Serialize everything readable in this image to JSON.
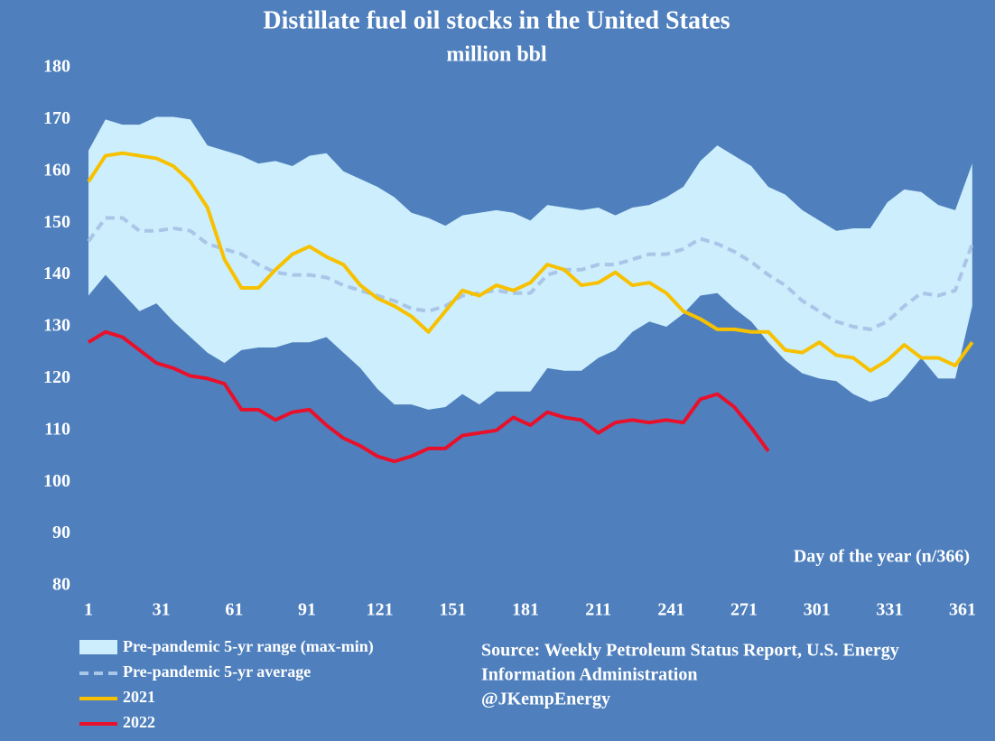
{
  "chart_data": {
    "type": "line",
    "title": "Distillate fuel oil stocks in the United States",
    "subtitle": "million bbl",
    "x_label": "Day of the year (n/366)",
    "background": "#4f80bd",
    "grid": false,
    "xlim": [
      1,
      366
    ],
    "xticks": [
      1,
      31,
      61,
      91,
      121,
      151,
      181,
      211,
      241,
      271,
      301,
      331,
      361
    ],
    "ylim": [
      80,
      180
    ],
    "yticks": [
      80,
      90,
      100,
      110,
      120,
      130,
      140,
      150,
      160,
      170,
      180
    ],
    "x": [
      1,
      8,
      15,
      22,
      29,
      36,
      43,
      50,
      57,
      64,
      71,
      78,
      85,
      92,
      99,
      106,
      113,
      120,
      127,
      134,
      141,
      148,
      155,
      162,
      169,
      176,
      183,
      190,
      197,
      204,
      211,
      218,
      225,
      232,
      239,
      246,
      253,
      260,
      267,
      274,
      281,
      288,
      295,
      302,
      309,
      316,
      323,
      330,
      337,
      344,
      351,
      358,
      365
    ],
    "band": {
      "name": "Pre-pandemic 5-yr range (max-min)",
      "color": "#cdeefc",
      "max": [
        164,
        170,
        169,
        169,
        170.5,
        170.5,
        170,
        165,
        164,
        163,
        161.5,
        162,
        161,
        163,
        163.5,
        160,
        158.5,
        157,
        155,
        152,
        151,
        149.5,
        151.5,
        152,
        152.5,
        152,
        150.5,
        153.5,
        153,
        152.5,
        153,
        151.5,
        153,
        153.5,
        155,
        157,
        162,
        165,
        163,
        161,
        157,
        155.5,
        152.5,
        150.5,
        148.5,
        149,
        149,
        154,
        156.5,
        156,
        153.5,
        152.5,
        161.5
      ],
      "min": [
        136,
        140,
        136.5,
        133,
        134.5,
        131,
        128,
        125,
        123,
        125.5,
        126,
        126,
        127,
        127,
        128,
        125,
        122,
        118,
        115,
        115,
        114,
        114.5,
        117,
        115,
        117.5,
        117.5,
        117.5,
        122,
        121.5,
        121.5,
        124,
        125.5,
        129,
        131,
        130,
        132.5,
        136,
        136.5,
        133.5,
        131,
        127,
        123.5,
        121,
        120,
        119.5,
        117,
        115.5,
        116.5,
        120,
        124,
        120,
        120,
        134
      ]
    },
    "series": [
      {
        "name": "Pre-pandemic 5-yr average",
        "color": "#a9c5e8",
        "dashed": true,
        "values": [
          146.5,
          151,
          151,
          148.5,
          148.5,
          149,
          148.5,
          146,
          145,
          144,
          142,
          140.5,
          140,
          140,
          139.5,
          138,
          137,
          136,
          135,
          133.5,
          133,
          134,
          136,
          136.5,
          137,
          136.5,
          136.5,
          140,
          141,
          141,
          142,
          142,
          143,
          144,
          144,
          145,
          147,
          146,
          144.5,
          142.5,
          140,
          138,
          135,
          133,
          131,
          130,
          129.5,
          131,
          134,
          136.5,
          136,
          137,
          146
        ]
      },
      {
        "name": "2021",
        "color": "#f7c100",
        "dashed": false,
        "values": [
          158,
          163,
          163.5,
          163,
          162.5,
          161,
          158,
          153,
          143,
          137.5,
          137.5,
          141,
          144,
          145.5,
          143.5,
          142,
          138,
          135.5,
          134,
          132,
          129,
          133,
          137,
          136,
          138,
          137,
          138.5,
          142,
          141,
          138,
          138.5,
          140.5,
          138,
          138.5,
          136.5,
          133,
          131.5,
          129.5,
          129.5,
          129,
          129,
          125.5,
          125,
          127,
          124.5,
          124,
          121.5,
          123.5,
          126.5,
          124,
          124,
          122.5,
          127
        ]
      },
      {
        "name": "2022",
        "color": "#e8102b",
        "dashed": false,
        "values": [
          127,
          129,
          128,
          125.5,
          123,
          122,
          120.5,
          120,
          119,
          114,
          114,
          112,
          113.5,
          114,
          111,
          108.5,
          107,
          105,
          104,
          105,
          106.5,
          106.5,
          109,
          109.5,
          110,
          112.5,
          111,
          113.5,
          112.5,
          112,
          109.5,
          111.5,
          112,
          111.5,
          112,
          111.5,
          116,
          117,
          114.5,
          110.5,
          106,
          null,
          null,
          null,
          null,
          null,
          null,
          null,
          null,
          null,
          null,
          null,
          null
        ]
      }
    ],
    "source": [
      "Source: Weekly Petroleum Status Report, U.S. Energy",
      "Information Administration",
      "@JKempEnergy"
    ]
  }
}
